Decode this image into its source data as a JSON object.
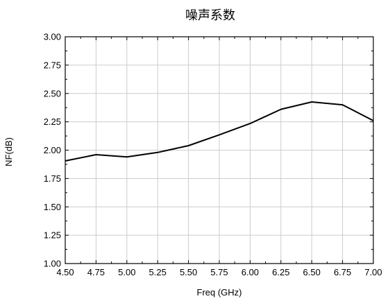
{
  "chart_data": {
    "type": "line",
    "title": "噪声系数",
    "xlabel": "Freq (GHz)",
    "ylabel": "NF(dB)",
    "xlim": [
      4.5,
      7.0
    ],
    "ylim": [
      1.0,
      3.0
    ],
    "x_ticks": [
      "4.50",
      "4.75",
      "5.00",
      "5.25",
      "5.50",
      "5.75",
      "6.00",
      "6.25",
      "6.50",
      "6.75",
      "7.00"
    ],
    "y_ticks": [
      "1.00",
      "1.25",
      "1.50",
      "1.75",
      "2.00",
      "2.25",
      "2.50",
      "2.75",
      "3.00"
    ],
    "grid": true,
    "legend": "none",
    "line_color": "#000000",
    "series": [
      {
        "x": [
          4.5,
          4.75,
          5.0,
          5.25,
          5.5,
          5.75,
          6.0,
          6.25,
          6.5,
          6.75,
          7.0
        ],
        "values": [
          1.905,
          1.96,
          1.94,
          1.98,
          2.04,
          2.135,
          2.235,
          2.36,
          2.425,
          2.4,
          2.26
        ]
      }
    ]
  }
}
